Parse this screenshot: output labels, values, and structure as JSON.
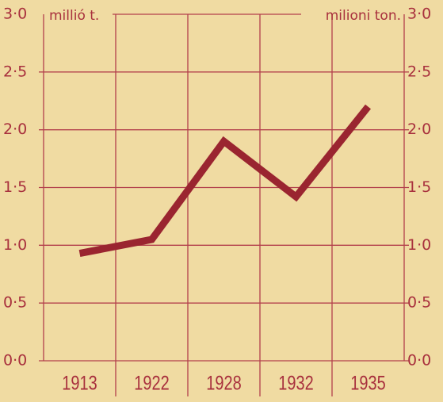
{
  "chart_data": {
    "type": "line",
    "y_label_left": "millió t.",
    "y_label_right": "milioni ton.",
    "categories": [
      "1913",
      "1922",
      "1928",
      "1932",
      "1935"
    ],
    "series": [
      {
        "color": "#9a2530",
        "values": [
          0.93,
          1.05,
          1.9,
          1.42,
          2.2
        ]
      }
    ],
    "ylim": [
      0,
      3
    ],
    "yticks": [
      {
        "value": 0,
        "label": "0·0"
      },
      {
        "value": 0.5,
        "label": "0·5"
      },
      {
        "value": 1,
        "label": "1·0"
      },
      {
        "value": 1.5,
        "label": "1·5"
      },
      {
        "value": 2,
        "label": "2·0"
      },
      {
        "value": 2.5,
        "label": "2·5"
      },
      {
        "value": 3,
        "label": "3·0"
      }
    ],
    "grid": true
  }
}
